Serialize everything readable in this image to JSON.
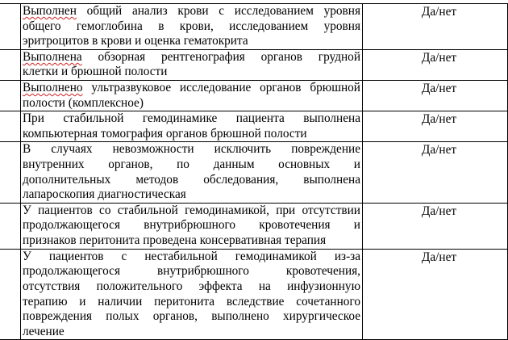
{
  "table": {
    "rows": [
      {
        "spellcheck_first_word": true,
        "answer": "Да/нет",
        "height": 0,
        "lines": [
          "Выполнен общий анализ крови с исследованием уровня",
          "общего гемоглобина в крови, исследованием уровня",
          "эритроцитов в крови и оценка гематокрита"
        ]
      },
      {
        "spellcheck_first_word": true,
        "answer": "Да/нет",
        "lines": [
          "Выполнена обзорная рентгенография органов грудной",
          "клетки и брюшной полости"
        ]
      },
      {
        "spellcheck_first_word": true,
        "answer": "Да/нет",
        "lines": [
          "Выполнено ультразвуковое исследование органов брюшной",
          "полости (комплексное)"
        ]
      },
      {
        "spellcheck_first_word": false,
        "answer": "Да/нет",
        "lines": [
          "При стабильной гемодинамике пациента выполнена",
          "компьютерная томография органов брюшной полости"
        ]
      },
      {
        "spellcheck_first_word": false,
        "answer": "Да/нет",
        "lines": [
          "В случаях невозможности исключить повреждение",
          "внутренних органов, по данным основных и",
          "дополнительных методов обследования, выполнена",
          "лапароскопия диагностическая"
        ]
      },
      {
        "spellcheck_first_word": false,
        "answer": "Да/нет",
        "lines": [
          "У пациентов со стабильной гемодинамикой, при отсутствии",
          "продолжающегося внутрибрюшного кровотечения и",
          "признаков перитонита проведена консервативная терапия"
        ]
      },
      {
        "spellcheck_first_word": false,
        "answer": "Да/нет",
        "lines": [
          "У пациентов с нестабильной гемодинамикой из-за",
          "продолжающегося внутрибрюшного кровотечения,",
          "отсутствия положительного эффекта на инфузионную",
          "терапию и наличии перитонита вследствие сочетанного",
          "повреждения полых органов, выполнено хирургическое",
          "лечение"
        ]
      }
    ]
  }
}
